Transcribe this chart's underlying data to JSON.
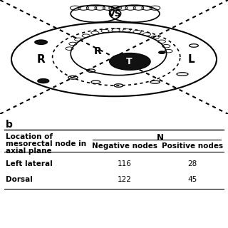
{
  "panel_label": "b",
  "col_header_main": "N",
  "col_header_1": "Negative nodes",
  "col_header_2": "Positive nodes",
  "row_header_line1": "Location of",
  "row_header_line2": "mesorectal node in",
  "row_header_line3": "axial plane",
  "rows": [
    {
      "label": "Left lateral",
      "neg": "116",
      "pos": "28"
    },
    {
      "label": "Dorsal",
      "neg": "122",
      "pos": "45"
    }
  ],
  "bg_color": "#ffffff",
  "text_color": "#000000",
  "line_color": "#000000",
  "diag_split": 0.52,
  "table_split": 0.48
}
